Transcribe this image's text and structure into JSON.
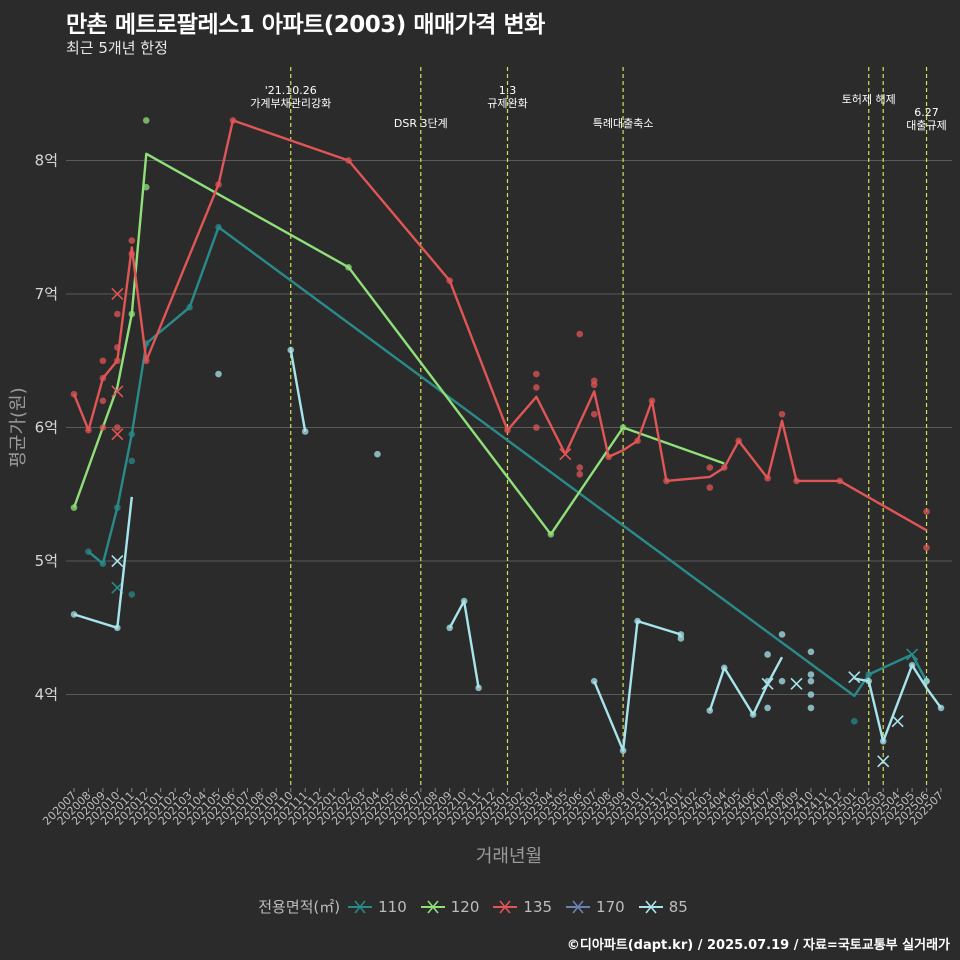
{
  "title": "만촌 메트로팔레스1 아파트(2003) 매매가격 변화",
  "subtitle": "최근 5개년 한정",
  "caption": "©디아파트(dapt.kr) / 2025.07.19 / 자료=국토교통부 실거래가",
  "chart_data": {
    "type": "line",
    "xlabel": "거래년월",
    "ylabel": "평균가(원)",
    "x_categories": [
      "202007",
      "202008",
      "202009",
      "202010",
      "202011",
      "202012",
      "202101",
      "202102",
      "202103",
      "202104",
      "202105",
      "202106",
      "202107",
      "202108",
      "202109",
      "202110",
      "202111",
      "202112",
      "202201",
      "202202",
      "202203",
      "202204",
      "202205",
      "202206",
      "202207",
      "202208",
      "202209",
      "202210",
      "202211",
      "202212",
      "202301",
      "202302",
      "202303",
      "202304",
      "202305",
      "202306",
      "202307",
      "202308",
      "202309",
      "202310",
      "202311",
      "202312",
      "202401",
      "202402",
      "202403",
      "202404",
      "202405",
      "202406",
      "202407",
      "202408",
      "202409",
      "202410",
      "202411",
      "202412",
      "202501",
      "202502",
      "202503",
      "202504",
      "202505",
      "202506",
      "202507"
    ],
    "y_ticks": [
      {
        "value": 4.0,
        "label": "4억"
      },
      {
        "value": 5.0,
        "label": "5억"
      },
      {
        "value": 6.0,
        "label": "6억"
      },
      {
        "value": 7.0,
        "label": "7억"
      },
      {
        "value": 8.0,
        "label": "8억"
      }
    ],
    "ylim": [
      3.3,
      8.7
    ],
    "grid": true,
    "legend": {
      "title": "전용면적(㎡)",
      "position": "bottom"
    },
    "events": [
      {
        "x": "202110",
        "label": "'21.10.26\n가계부채관리강화",
        "row": 1
      },
      {
        "x": "202207",
        "label": "DSR 3단계",
        "row": 2
      },
      {
        "x": "202301",
        "label": "1.3\n규제완화",
        "row": 1
      },
      {
        "x": "202309",
        "label": "특례대출축소",
        "row": 2
      },
      {
        "x": "202502",
        "label": "토허제 해제",
        "row": 1
      },
      {
        "x": "202503",
        "label": "",
        "row": 1
      },
      {
        "x": "202506",
        "label": "6.27\n대출규제",
        "row": 1.6
      }
    ],
    "series": [
      {
        "name": "110",
        "color": "#2a8a8a",
        "line": [
          [
            "202008",
            5.07
          ],
          [
            "202009",
            4.98
          ],
          [
            "202010",
            5.4
          ],
          [
            "202011",
            5.95
          ],
          [
            "202012",
            6.63
          ],
          [
            "202103",
            6.9
          ],
          [
            "202105",
            7.5
          ],
          [
            "202501",
            3.99
          ],
          [
            "202502",
            4.15
          ],
          [
            "202505",
            4.3
          ],
          [
            "202506",
            4.1
          ]
        ],
        "points": [
          [
            "202008",
            5.07
          ],
          [
            "202009",
            4.98
          ],
          [
            "202010",
            5.4
          ],
          [
            "202011",
            5.95
          ],
          [
            "202011",
            5.75
          ],
          [
            "202011",
            4.75
          ],
          [
            "202012",
            6.63
          ],
          [
            "202103",
            6.9
          ],
          [
            "202105",
            7.5
          ],
          [
            "202501",
            3.8
          ],
          [
            "202502",
            4.15
          ],
          [
            "202506",
            4.1
          ]
        ],
        "crosses": [
          [
            "202010",
            4.8
          ],
          [
            "202505",
            4.3
          ]
        ]
      },
      {
        "name": "120",
        "color": "#8fe07a",
        "line": [
          [
            "202007",
            5.4
          ],
          [
            "202010",
            6.3
          ],
          [
            "202011",
            6.85
          ],
          [
            "202012",
            8.05
          ],
          [
            "202202",
            7.2
          ],
          [
            "202304",
            5.2
          ],
          [
            "202309",
            6.0
          ],
          [
            "202404",
            5.73
          ]
        ],
        "points": [
          [
            "202007",
            5.4
          ],
          [
            "202011",
            6.85
          ],
          [
            "202012",
            8.3
          ],
          [
            "202012",
            7.8
          ],
          [
            "202202",
            7.2
          ],
          [
            "202304",
            5.2
          ],
          [
            "202309",
            6.0
          ]
        ],
        "crosses": []
      },
      {
        "name": "135",
        "color": "#e05555",
        "line": [
          [
            "202007",
            6.25
          ],
          [
            "202008",
            5.98
          ],
          [
            "202009",
            6.37
          ],
          [
            "202010",
            6.5
          ],
          [
            "202011",
            7.35
          ],
          [
            "202012",
            6.5
          ],
          [
            "202105",
            7.82
          ],
          [
            "202106",
            8.3
          ],
          [
            "202202",
            8.0
          ],
          [
            "202209",
            7.1
          ],
          [
            "202301",
            5.98
          ],
          [
            "202303",
            6.23
          ],
          [
            "202305",
            5.8
          ],
          [
            "202307",
            6.27
          ],
          [
            "202308",
            5.78
          ],
          [
            "202309",
            5.83
          ],
          [
            "202310",
            5.9
          ],
          [
            "202311",
            6.2
          ],
          [
            "202312",
            5.6
          ],
          [
            "202403",
            5.63
          ],
          [
            "202404",
            5.7
          ],
          [
            "202405",
            5.9
          ],
          [
            "202407",
            5.62
          ],
          [
            "202408",
            6.05
          ],
          [
            "202409",
            5.6
          ],
          [
            "202412",
            5.6
          ],
          [
            "202506",
            5.23
          ]
        ],
        "points": [
          [
            "202007",
            6.25
          ],
          [
            "202008",
            5.98
          ],
          [
            "202009",
            6.5
          ],
          [
            "202009",
            6.37
          ],
          [
            "202009",
            6.2
          ],
          [
            "202009",
            6.0
          ],
          [
            "202010",
            6.6
          ],
          [
            "202010",
            6.85
          ],
          [
            "202010",
            6.5
          ],
          [
            "202010",
            6.0
          ],
          [
            "202011",
            7.4
          ],
          [
            "202011",
            7.3
          ],
          [
            "202012",
            6.5
          ],
          [
            "202105",
            7.82
          ],
          [
            "202106",
            8.3
          ],
          [
            "202202",
            8.0
          ],
          [
            "202209",
            7.1
          ],
          [
            "202301",
            5.98
          ],
          [
            "202303",
            6.4
          ],
          [
            "202303",
            6.3
          ],
          [
            "202303",
            6.0
          ],
          [
            "202306",
            6.7
          ],
          [
            "202306",
            5.7
          ],
          [
            "202306",
            5.65
          ],
          [
            "202307",
            6.35
          ],
          [
            "202307",
            6.32
          ],
          [
            "202307",
            6.1
          ],
          [
            "202308",
            5.78
          ],
          [
            "202310",
            5.9
          ],
          [
            "202311",
            6.2
          ],
          [
            "202312",
            5.6
          ],
          [
            "202403",
            5.7
          ],
          [
            "202403",
            5.55
          ],
          [
            "202404",
            5.7
          ],
          [
            "202405",
            5.9
          ],
          [
            "202407",
            5.62
          ],
          [
            "202408",
            6.1
          ],
          [
            "202409",
            5.6
          ],
          [
            "202412",
            5.6
          ],
          [
            "202506",
            5.37
          ],
          [
            "202506",
            5.1
          ]
        ],
        "crosses": [
          [
            "202010",
            7.0
          ],
          [
            "202010",
            6.27
          ],
          [
            "202010",
            5.95
          ],
          [
            "202305",
            5.8
          ]
        ]
      },
      {
        "name": "170",
        "color": "#6a82b0",
        "line": [],
        "points": [],
        "crosses": []
      },
      {
        "name": "85",
        "color": "#a8e4ec",
        "segments": [
          [
            [
              "202007",
              4.6
            ],
            [
              "202010",
              4.5
            ],
            [
              "202011",
              5.48
            ]
          ],
          [
            [
              "202110",
              6.58
            ],
            [
              "202111",
              5.97
            ]
          ],
          [
            [
              "202209",
              4.5
            ],
            [
              "202210",
              4.7
            ],
            [
              "202211",
              4.05
            ]
          ],
          [
            [
              "202307",
              4.1
            ],
            [
              "202309",
              3.58
            ],
            [
              "202310",
              4.55
            ],
            [
              "202401",
              4.45
            ]
          ],
          [
            [
              "202403",
              3.88
            ],
            [
              "202404",
              4.2
            ],
            [
              "202406",
              3.85
            ],
            [
              "202407",
              4.08
            ],
            [
              "202408",
              4.28
            ]
          ],
          [
            [
              "202501",
              4.12
            ],
            [
              "202502",
              4.1
            ],
            [
              "202503",
              3.65
            ],
            [
              "202505",
              4.22
            ],
            [
              "202506",
              4.05
            ],
            [
              "202507",
              3.9
            ]
          ]
        ],
        "points": [
          [
            "202007",
            4.6
          ],
          [
            "202010",
            4.5
          ],
          [
            "202105",
            6.4
          ],
          [
            "202110",
            6.58
          ],
          [
            "202111",
            5.97
          ],
          [
            "202204",
            5.8
          ],
          [
            "202209",
            4.5
          ],
          [
            "202210",
            4.7
          ],
          [
            "202211",
            4.05
          ],
          [
            "202307",
            4.1
          ],
          [
            "202309",
            3.58
          ],
          [
            "202310",
            4.55
          ],
          [
            "202401",
            4.45
          ],
          [
            "202401",
            4.42
          ],
          [
            "202403",
            3.88
          ],
          [
            "202404",
            4.2
          ],
          [
            "202406",
            3.85
          ],
          [
            "202407",
            4.3
          ],
          [
            "202407",
            4.1
          ],
          [
            "202407",
            3.9
          ],
          [
            "202408",
            4.45
          ],
          [
            "202408",
            4.1
          ],
          [
            "202410",
            4.32
          ],
          [
            "202410",
            4.15
          ],
          [
            "202410",
            4.1
          ],
          [
            "202410",
            4.0
          ],
          [
            "202410",
            3.9
          ],
          [
            "202502",
            4.1
          ],
          [
            "202503",
            3.65
          ],
          [
            "202505",
            4.22
          ],
          [
            "202506",
            4.1
          ],
          [
            "202507",
            3.9
          ]
        ],
        "crosses": [
          [
            "202010",
            5.0
          ],
          [
            "202407",
            4.08
          ],
          [
            "202409",
            4.08
          ],
          [
            "202501",
            4.13
          ],
          [
            "202503",
            3.5
          ],
          [
            "202504",
            3.8
          ]
        ]
      }
    ]
  }
}
